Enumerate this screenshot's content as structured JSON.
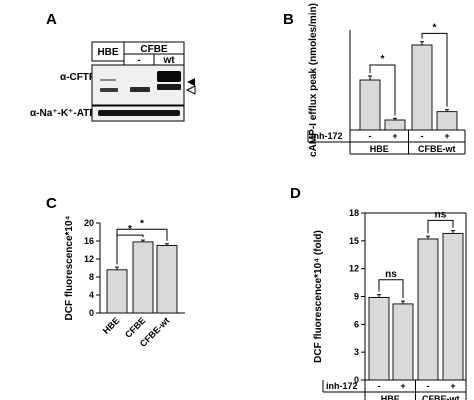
{
  "panels": {
    "A": {
      "label": "A",
      "lane_headers": [
        "HBE",
        "CFBE"
      ],
      "sub_headers": [
        "-",
        "wt"
      ],
      "row_labels": [
        "α-CFTR",
        "α-Na⁺-K⁺-ATPase"
      ],
      "marker_icons": [
        "filled-triangle-icon",
        "open-triangle-icon"
      ]
    },
    "B": {
      "label": "B"
    },
    "C": {
      "label": "C"
    },
    "D": {
      "label": "D"
    }
  },
  "chart_data": [
    {
      "panel": "B",
      "type": "bar",
      "ylabel": "cAMP-I efflux peak (nmoles/min)",
      "ylim": [
        0,
        30
      ],
      "yticks": [],
      "treatment_label": "inh-172",
      "treatment_values": [
        "-",
        "+",
        "-",
        "+"
      ],
      "groups": [
        "HBE",
        "CFBE-wt"
      ],
      "values": [
        15,
        3,
        25.5,
        5.5
      ],
      "errors": [
        1.2,
        0.5,
        1.0,
        0.6
      ],
      "significance": [
        "*",
        "*"
      ]
    },
    {
      "panel": "C",
      "type": "bar",
      "ylabel": "DCF fluorescence*10⁴",
      "ylim": [
        0,
        20
      ],
      "yticks": [
        "0",
        "4",
        "8",
        "12",
        "16",
        "20"
      ],
      "categories": [
        "HBE",
        "CFBE",
        "CFBE-wt"
      ],
      "values": [
        9.6,
        15.8,
        15.0
      ],
      "errors": [
        0.6,
        0.4,
        0.4
      ],
      "significance": [
        "*",
        "*"
      ]
    },
    {
      "panel": "D",
      "type": "bar",
      "ylabel": "DCF fluorescence*10⁴ (fold)",
      "ylim": [
        0,
        18
      ],
      "yticks": [
        "0",
        "3",
        "6",
        "9",
        "12",
        "15",
        "18"
      ],
      "treatment_label": "inh-172",
      "treatment_values": [
        "-",
        "+",
        "-",
        "+"
      ],
      "groups": [
        "HBE",
        "CFBE-wt"
      ],
      "values": [
        8.9,
        8.2,
        15.2,
        15.8
      ],
      "errors": [
        0.3,
        0.3,
        0.3,
        0.3
      ],
      "significance": [
        "ns",
        "ns"
      ]
    }
  ]
}
